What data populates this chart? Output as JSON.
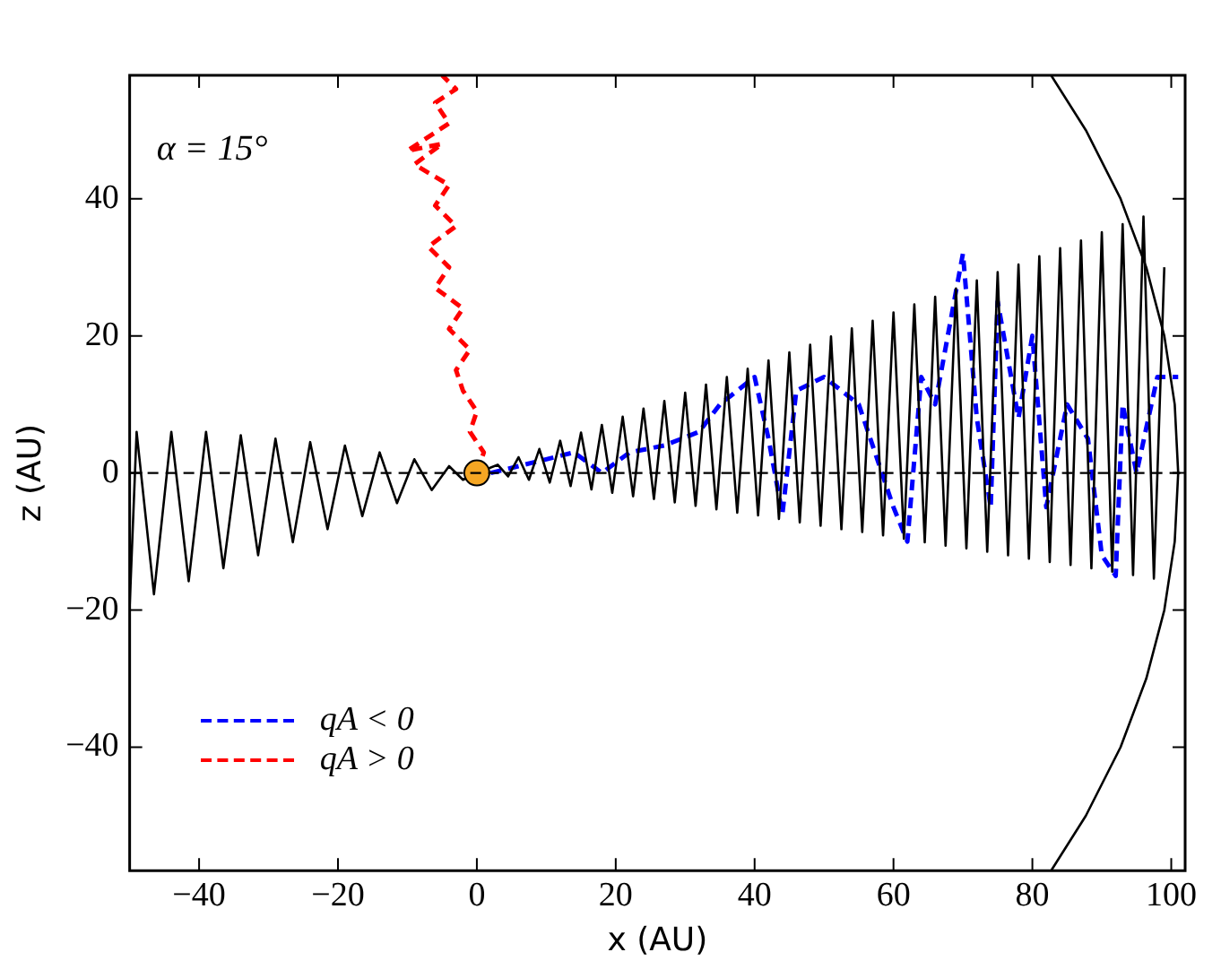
{
  "chart_data": {
    "type": "line",
    "xlabel": "x (AU)",
    "ylabel": "z (AU)",
    "annotations": [
      "α = 15°"
    ],
    "xlim": [
      -50,
      102
    ],
    "xticks": [
      -40,
      -20,
      0,
      20,
      40,
      60,
      80,
      100
    ],
    "ylim": [
      -58,
      58
    ],
    "yticks": [
      -40,
      -20,
      0,
      20,
      40
    ],
    "grid": false,
    "legend": "bottom left",
    "ref_lines": [
      {
        "axis": "y",
        "value": 0,
        "color": "#000000",
        "line_style": "dashed"
      }
    ],
    "series": [
      {
        "type": "line",
        "color": "#000000",
        "line_style": "solid",
        "x": [
          -50,
          -49,
          -46.5,
          -44,
          -41.5,
          -39,
          -36.5,
          -34,
          -31.5,
          -29,
          -26.5,
          -24,
          -21.5,
          -19,
          -16.5,
          -14,
          -11.5,
          -9,
          -6.5,
          -4,
          -2,
          0,
          3,
          4.5,
          6,
          7.5,
          9,
          10.5,
          12,
          13.5,
          15,
          16.5,
          18,
          19.5,
          21,
          22.5,
          24,
          25.5,
          27,
          28.5,
          30,
          31.5,
          33,
          34.5,
          36,
          37.5,
          39,
          40.5,
          42,
          43.5,
          45,
          46.5,
          48,
          49.5,
          51,
          52.5,
          54,
          55.5,
          57,
          58.5,
          60,
          61.5,
          63,
          64.5,
          66,
          67.5,
          69,
          70.5,
          72,
          73.5,
          75,
          76.5,
          78,
          79.5,
          81,
          82.5,
          84,
          85.5,
          87,
          88.5,
          90,
          91.5,
          93,
          94.5,
          96,
          97.5,
          99
        ],
        "values": [
          -19.5,
          6,
          -17.7,
          6,
          -15.8,
          6,
          -13.9,
          5.5,
          -12,
          5,
          -10.1,
          4.5,
          -8.2,
          4,
          -6.3,
          3,
          -4.4,
          2,
          -2.5,
          1,
          -1,
          0,
          1.2,
          -0.5,
          2.3,
          -1,
          3.5,
          -1.4,
          4.7,
          -1.9,
          5.9,
          -2.4,
          7,
          -2.9,
          8.2,
          -3.4,
          9.4,
          -3.8,
          10.5,
          -4.3,
          11.7,
          -4.8,
          12.9,
          -5.3,
          14,
          -5.8,
          15.2,
          -6.2,
          16.4,
          -6.7,
          17.6,
          -7.2,
          18.7,
          -7.7,
          19.9,
          -8.2,
          21.1,
          -8.6,
          22.2,
          -9.1,
          23.4,
          -9.6,
          24.6,
          -10.1,
          25.7,
          -10.6,
          26.9,
          -11,
          28.1,
          -11.5,
          29.3,
          -12,
          30.4,
          -12.5,
          31.6,
          -13,
          32.8,
          -13.4,
          33.9,
          -13.9,
          35.1,
          -14.4,
          36.3,
          -14.9,
          37.4,
          -15.4,
          30
        ]
      },
      {
        "type": "line",
        "color": "#000000",
        "line_style": "solid",
        "x": [
          82.7,
          87.7,
          92.7,
          96.4,
          99,
          100.5,
          101,
          100.5,
          99,
          96.4,
          92.7,
          87.7,
          82.7
        ],
        "values": [
          58,
          50,
          40,
          30,
          20,
          10,
          0,
          -10,
          -20,
          -30,
          -40,
          -50,
          -58
        ]
      },
      {
        "type": "line",
        "name": "qA < 0",
        "color": "#0000ff",
        "line_style": "dashed",
        "x": [
          2,
          6,
          10,
          14,
          18,
          22,
          27,
          32,
          35,
          40,
          42,
          44,
          46,
          50,
          55,
          60,
          62,
          64,
          66,
          70,
          72,
          74,
          75,
          78,
          80,
          82,
          85,
          88,
          90,
          92,
          93,
          95,
          98,
          101
        ],
        "values": [
          0,
          1,
          2,
          3,
          0,
          3,
          4,
          6,
          10,
          14,
          5,
          -6,
          12,
          14,
          10,
          -5,
          -10,
          14,
          10,
          32,
          8,
          -5,
          25,
          8,
          20,
          -5,
          10,
          5,
          -12,
          -15,
          10,
          0,
          14,
          14
        ]
      },
      {
        "type": "line",
        "name": "qA > 0",
        "color": "#ff0000",
        "line_style": "dashed",
        "x": [
          0,
          1,
          -1,
          0,
          -2,
          -3,
          -1,
          -4,
          -2,
          -6,
          -4,
          -7,
          -3,
          -6,
          -4,
          -9,
          -5,
          -10,
          -4,
          -6,
          -3,
          -5
        ],
        "values": [
          0,
          3,
          6,
          9,
          12,
          15,
          18,
          21,
          24,
          27,
          30,
          33,
          36,
          39,
          42,
          45,
          48,
          47,
          51,
          54,
          56,
          58
        ]
      },
      {
        "type": "scatter",
        "marker": "circle",
        "color": "#f5a623",
        "x": [
          0
        ],
        "values": [
          0
        ]
      }
    ]
  }
}
